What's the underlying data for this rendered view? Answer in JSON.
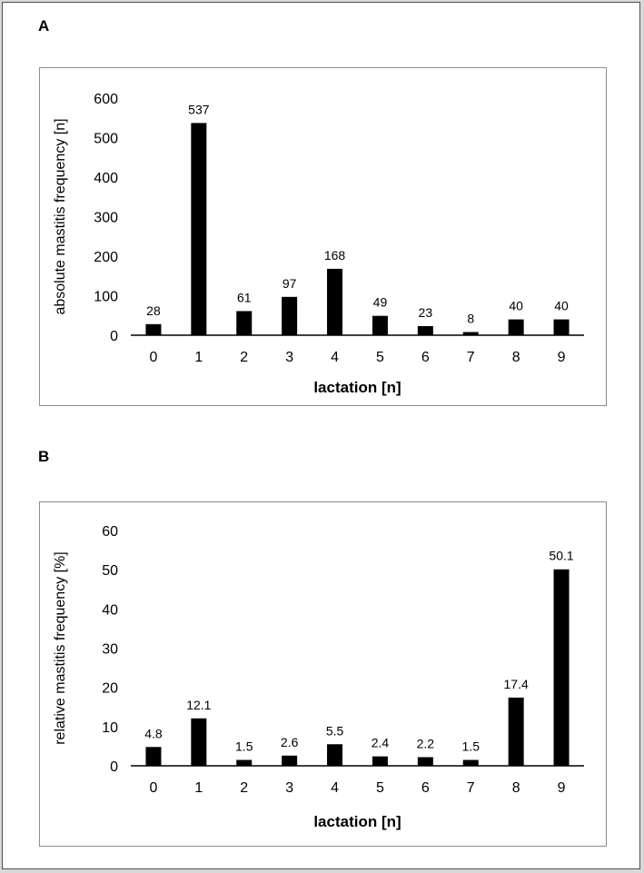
{
  "chart_data": [
    {
      "panel": "A",
      "type": "bar",
      "categories": [
        "0",
        "1",
        "2",
        "3",
        "4",
        "5",
        "6",
        "7",
        "8",
        "9"
      ],
      "values": [
        28,
        537,
        61,
        97,
        168,
        49,
        23,
        8,
        40,
        40
      ],
      "data_labels": [
        "28",
        "537",
        "61",
        "97",
        "168",
        "49",
        "23",
        "8",
        "40",
        "40"
      ],
      "yticks": [
        "0",
        "100",
        "200",
        "300",
        "400",
        "500",
        "600"
      ],
      "ylim": [
        0,
        600
      ],
      "ystep": 100,
      "xlabel": "lactation [n]",
      "ylabel": "absolute mastitis frequency [n]",
      "bar_color": "#000000",
      "grid": false
    },
    {
      "panel": "B",
      "type": "bar",
      "categories": [
        "0",
        "1",
        "2",
        "3",
        "4",
        "5",
        "6",
        "7",
        "8",
        "9"
      ],
      "values": [
        4.8,
        12.1,
        1.5,
        2.6,
        5.5,
        2.4,
        2.2,
        1.5,
        17.4,
        50.1
      ],
      "data_labels": [
        "4.8",
        "12.1",
        "1.5",
        "2.6",
        "5.5",
        "2.4",
        "2.2",
        "1.5",
        "17.4",
        "50.1"
      ],
      "yticks": [
        "0",
        "10",
        "20",
        "30",
        "40",
        "50",
        "60"
      ],
      "ylim": [
        0,
        60
      ],
      "ystep": 10,
      "xlabel": "lactation [n]",
      "ylabel": "relative mastitis frequency [%]",
      "bar_color": "#000000",
      "grid": false
    }
  ]
}
